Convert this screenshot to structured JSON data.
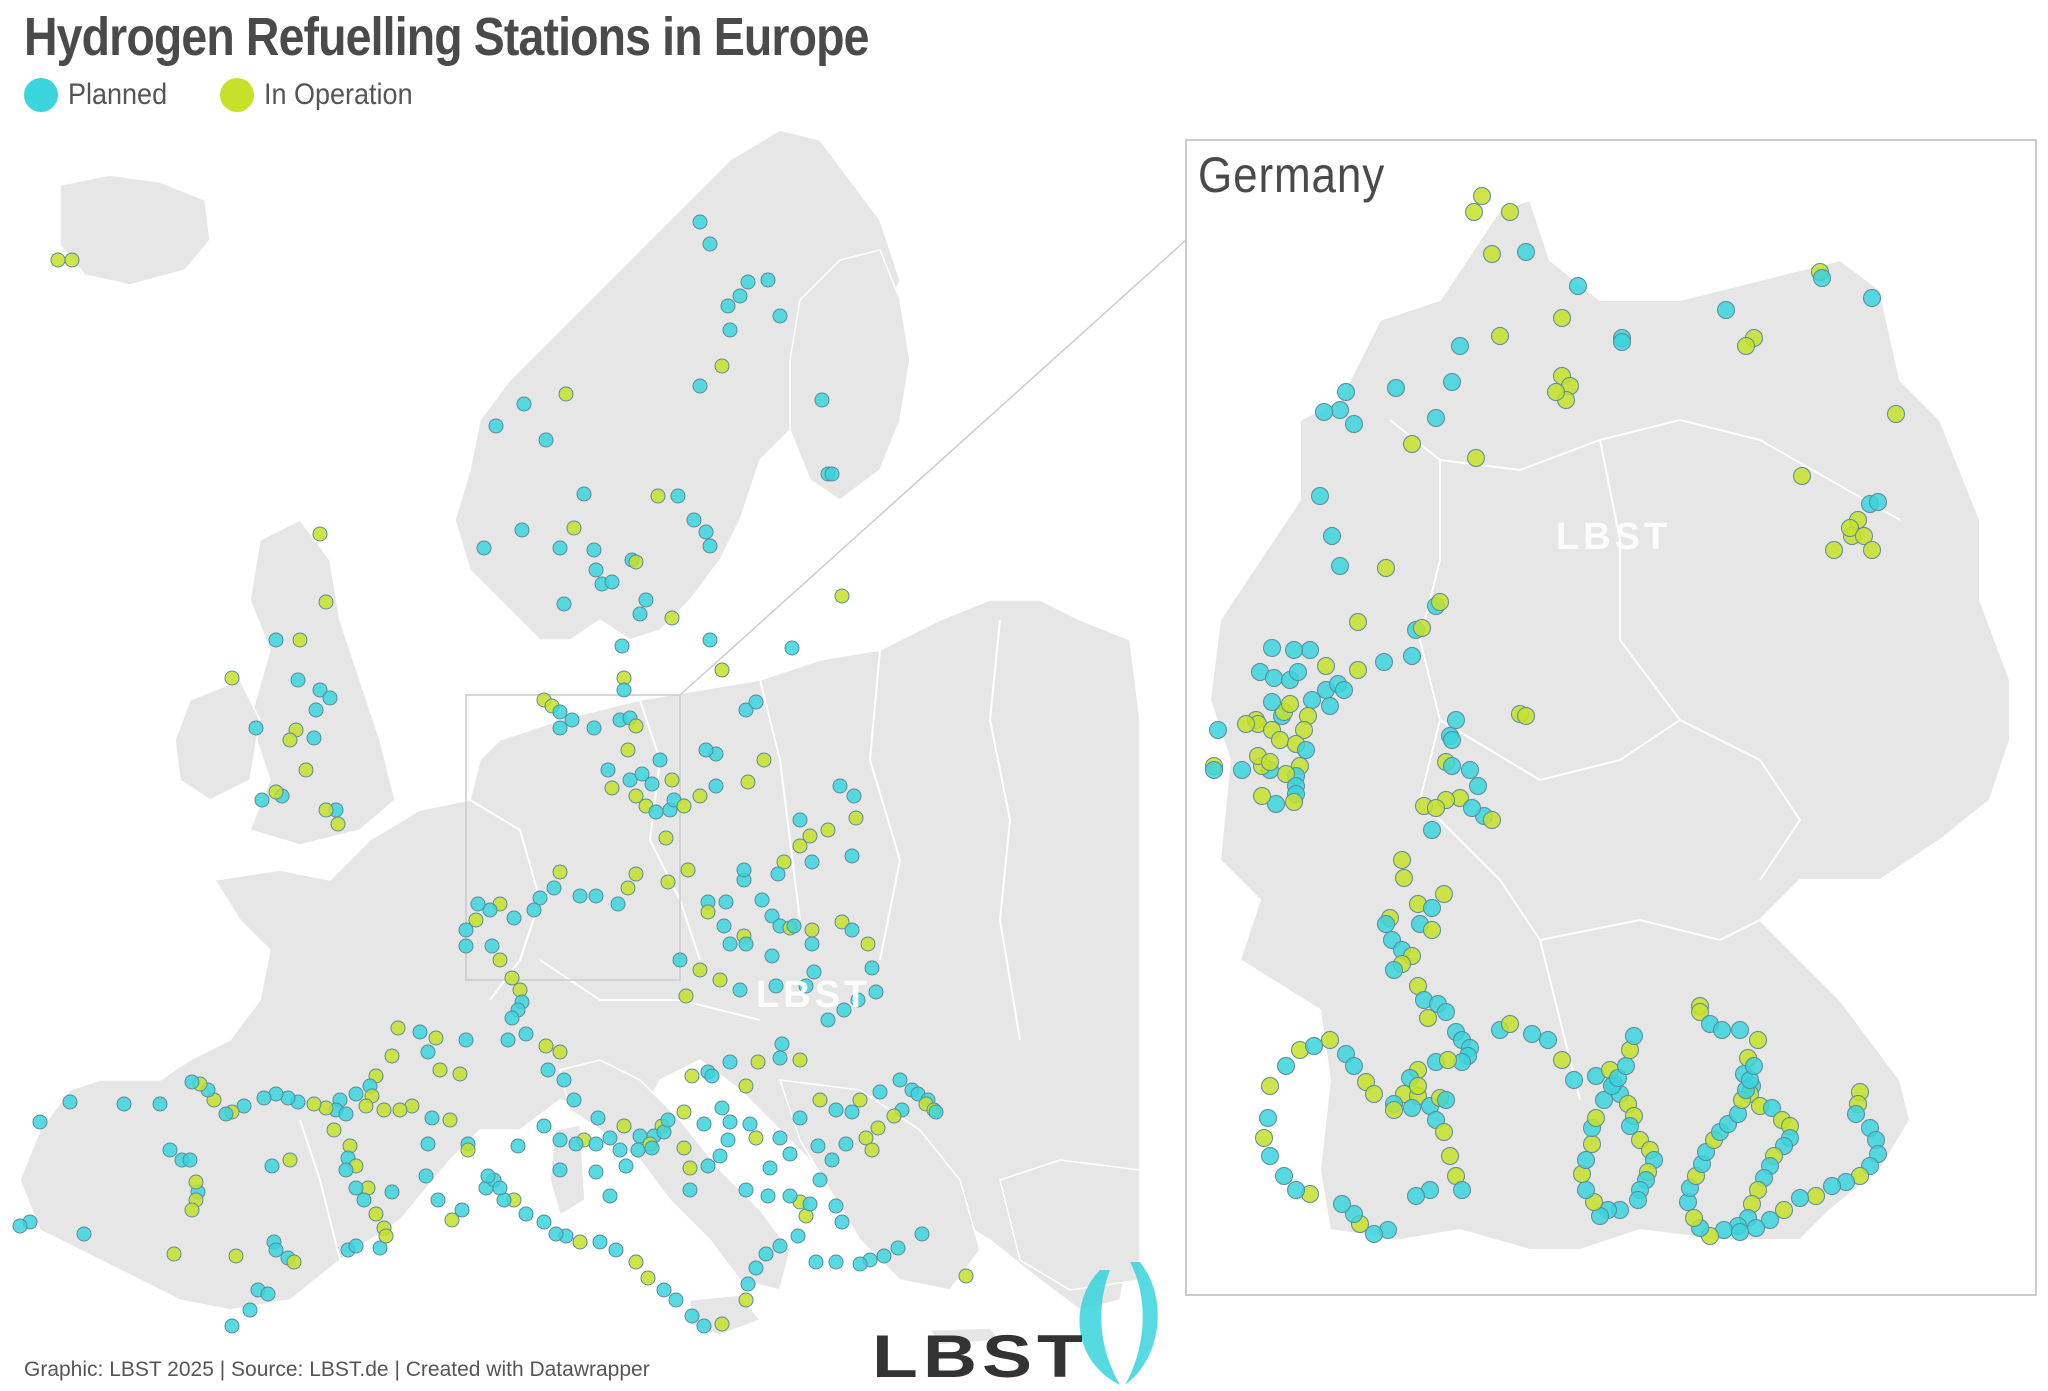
{
  "title": "Hydrogen Refuelling Stations in Europe",
  "legend": [
    {
      "label": "Planned",
      "color": "#39d4dc"
    },
    {
      "label": "In Operation",
      "color": "#c5e12a"
    }
  ],
  "inset": {
    "title": "Germany"
  },
  "footer": "Graphic: LBST 2025 | Source: LBST.de | Created with Datawrapper",
  "logo": {
    "text": "LBST",
    "watermark": "LBST"
  },
  "colors": {
    "land": "#e6e6e6",
    "border": "#ffffff",
    "planned": "#39d4dc",
    "operation": "#c5e12a"
  }
}
